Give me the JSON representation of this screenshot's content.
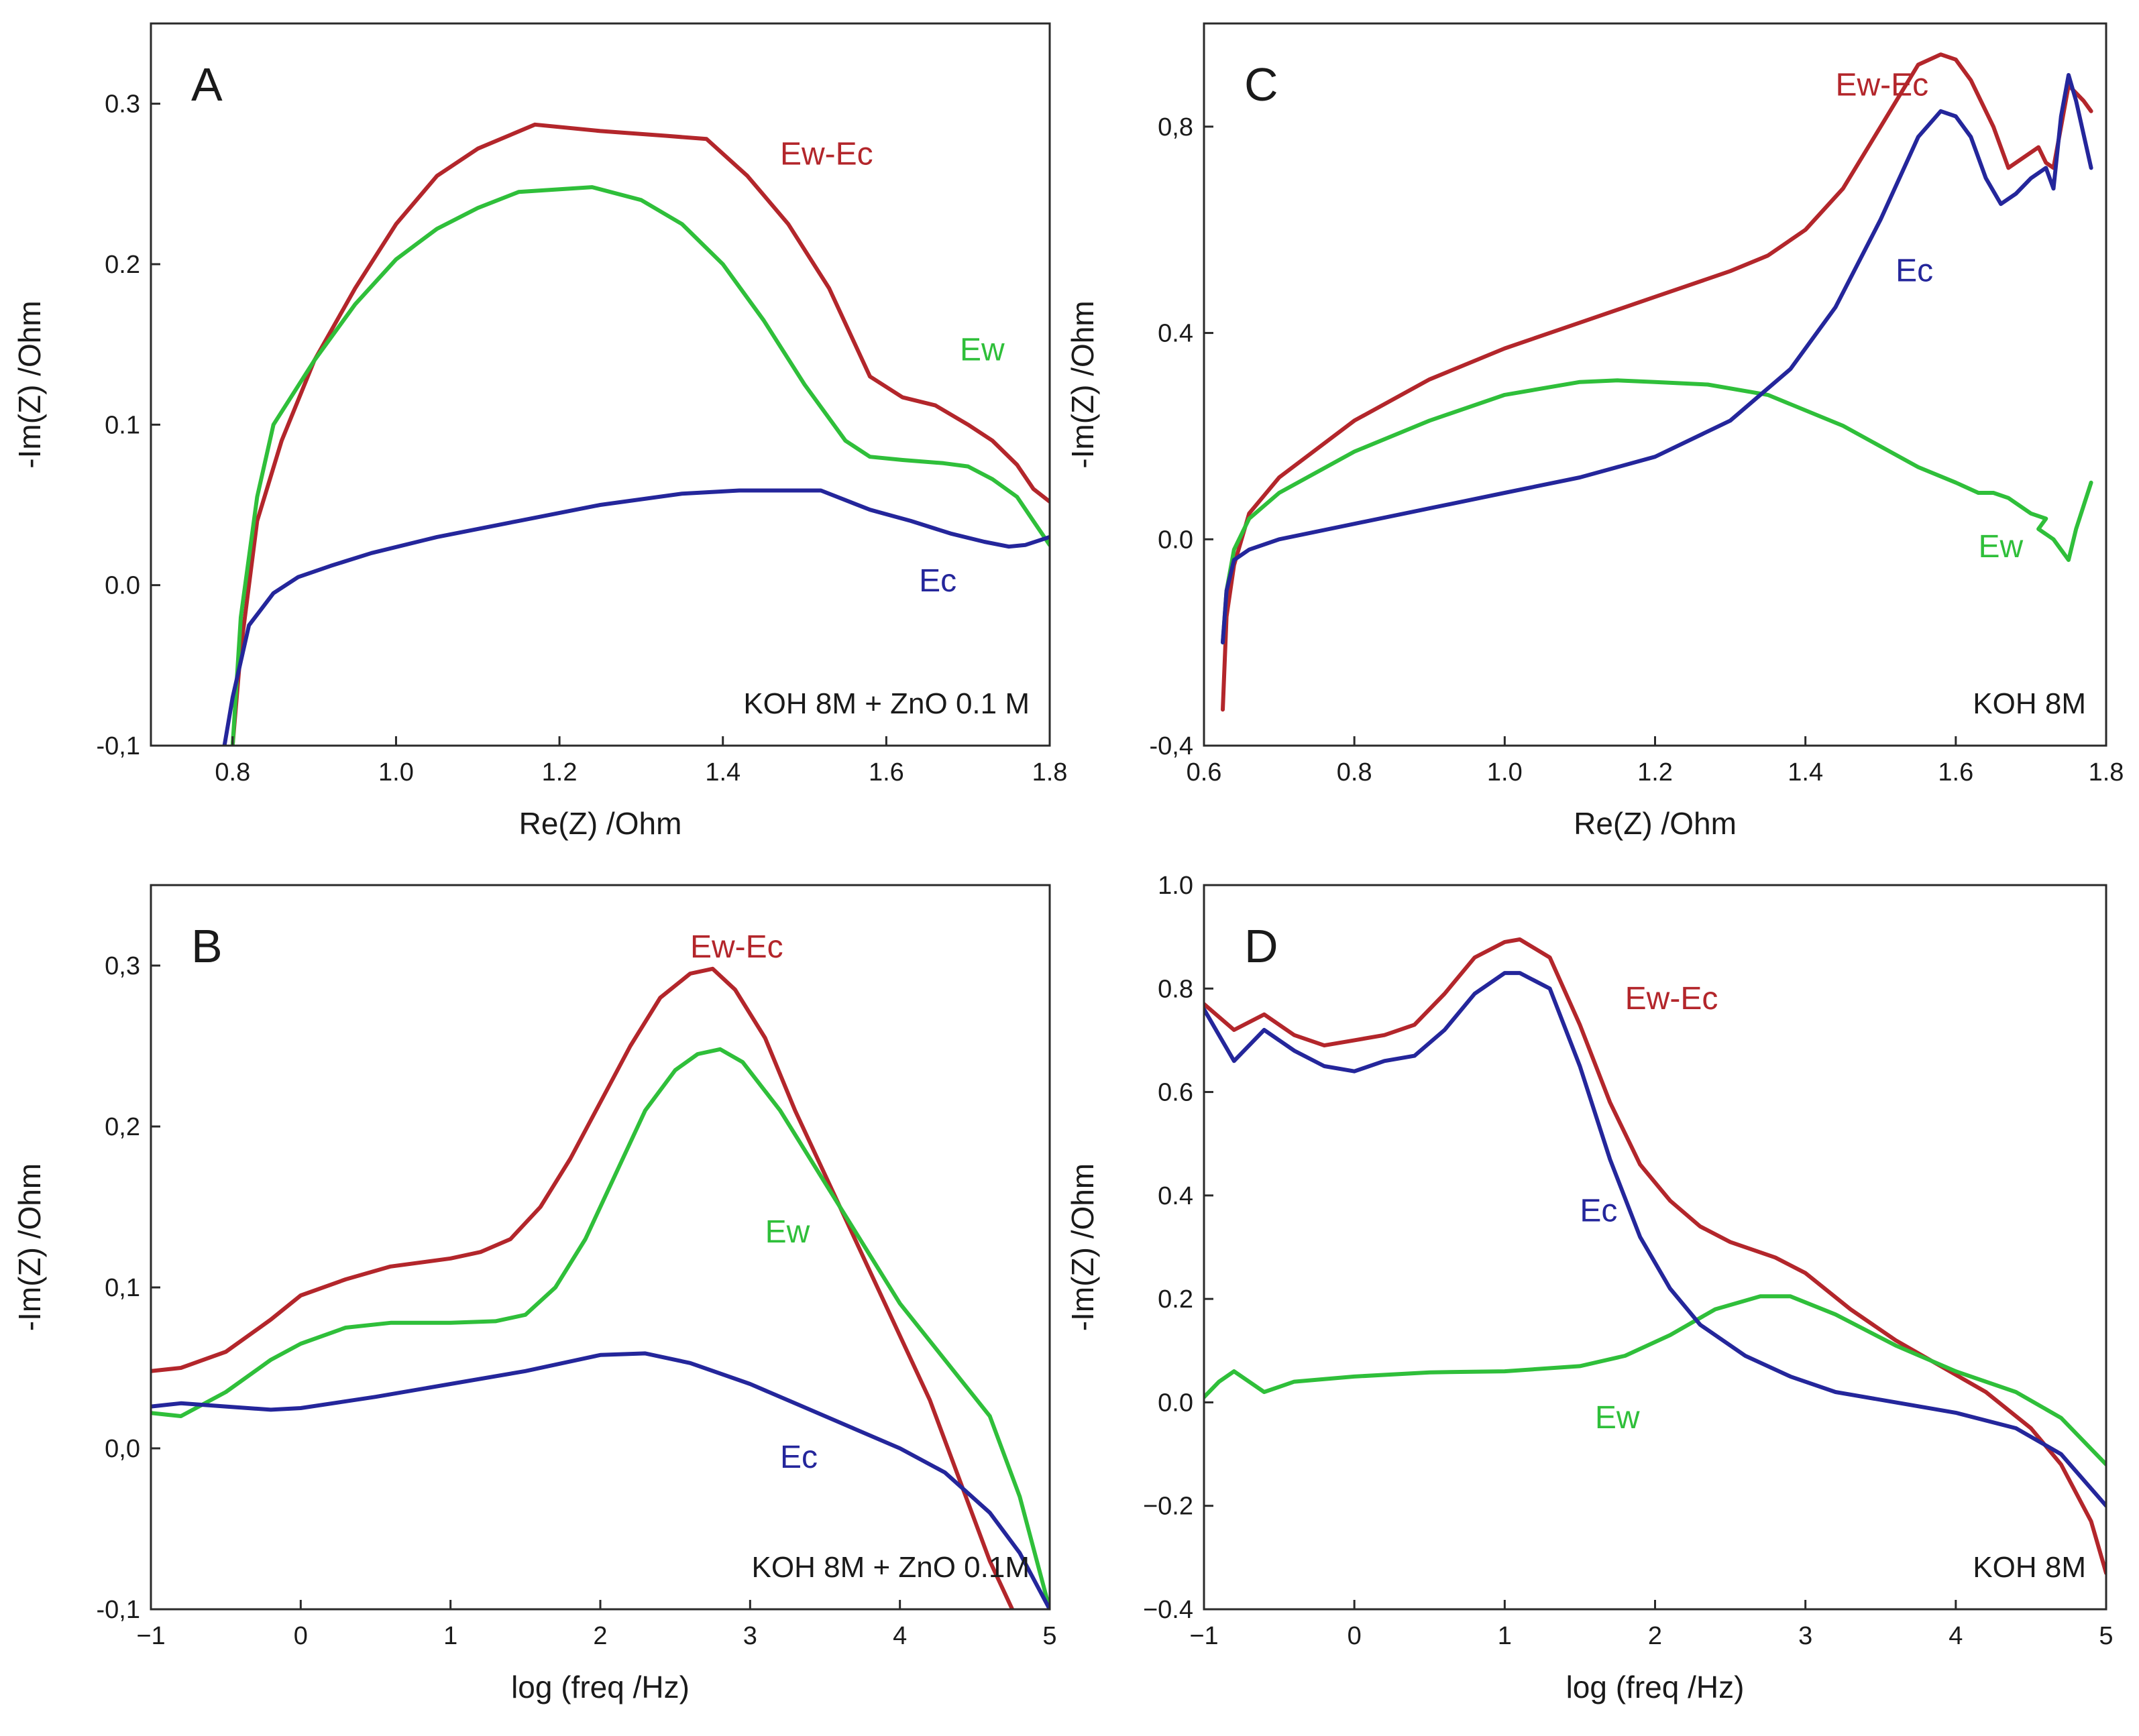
{
  "chart_data": [
    {
      "id": "A",
      "type": "line",
      "panel_label": "A",
      "xlabel": "Re(Z) /Ohm",
      "ylabel": "-Im(Z) /Ohm",
      "xlim": [
        0.7,
        1.8
      ],
      "ylim": [
        -0.1,
        0.35
      ],
      "xticks": [
        0.8,
        1.0,
        1.2,
        1.4,
        1.6,
        1.8
      ],
      "xtick_labels": [
        "0.8",
        "1.0",
        "1.2",
        "1.4",
        "1.6",
        "1.8"
      ],
      "yticks": [
        -0.1,
        0.0,
        0.1,
        0.2,
        0.3
      ],
      "ytick_labels": [
        "-0,1",
        "0.0",
        "0.1",
        "0.2",
        "0.3"
      ],
      "annotation": "KOH 8M + ZnO 0.1 M",
      "series": [
        {
          "name": "Ew-Ec",
          "color": "#b3262b",
          "x": [
            0.8,
            0.81,
            0.83,
            0.86,
            0.9,
            0.95,
            1.0,
            1.05,
            1.1,
            1.17,
            1.25,
            1.33,
            1.38,
            1.43,
            1.48,
            1.53,
            1.58,
            1.62,
            1.66,
            1.7,
            1.73,
            1.76,
            1.78,
            1.8
          ],
          "y": [
            -0.1,
            -0.04,
            0.04,
            0.09,
            0.14,
            0.185,
            0.225,
            0.255,
            0.272,
            0.287,
            0.283,
            0.28,
            0.278,
            0.255,
            0.225,
            0.185,
            0.13,
            0.117,
            0.112,
            0.1,
            0.09,
            0.075,
            0.06,
            0.052
          ],
          "label_pos": [
            1.47,
            0.262
          ]
        },
        {
          "name": "Ew",
          "color": "#2fbf3a",
          "x": [
            0.8,
            0.81,
            0.83,
            0.85,
            0.9,
            0.95,
            1.0,
            1.05,
            1.1,
            1.15,
            1.24,
            1.3,
            1.35,
            1.4,
            1.45,
            1.5,
            1.55,
            1.58,
            1.62,
            1.67,
            1.7,
            1.73,
            1.76,
            1.78,
            1.8
          ],
          "y": [
            -0.1,
            -0.02,
            0.055,
            0.1,
            0.14,
            0.175,
            0.203,
            0.222,
            0.235,
            0.245,
            0.248,
            0.24,
            0.225,
            0.2,
            0.165,
            0.125,
            0.09,
            0.08,
            0.078,
            0.076,
            0.074,
            0.066,
            0.055,
            0.04,
            0.025
          ],
          "label_pos": [
            1.69,
            0.14
          ]
        },
        {
          "name": "Ec",
          "color": "#24269b",
          "x": [
            0.79,
            0.8,
            0.82,
            0.85,
            0.88,
            0.92,
            0.97,
            1.05,
            1.15,
            1.25,
            1.35,
            1.42,
            1.52,
            1.58,
            1.63,
            1.68,
            1.72,
            1.75,
            1.77,
            1.8
          ],
          "y": [
            -0.1,
            -0.07,
            -0.025,
            -0.005,
            0.005,
            0.012,
            0.02,
            0.03,
            0.04,
            0.05,
            0.057,
            0.059,
            0.059,
            0.047,
            0.04,
            0.032,
            0.027,
            0.024,
            0.025,
            0.03
          ],
          "label_pos": [
            1.64,
            -0.004
          ]
        }
      ]
    },
    {
      "id": "B",
      "type": "line",
      "panel_label": "B",
      "xlabel": "log (freq /Hz)",
      "ylabel": "-Im(Z) /Ohm",
      "xlim": [
        -1,
        5
      ],
      "ylim": [
        -0.1,
        0.35
      ],
      "xticks": [
        -1,
        0,
        1,
        2,
        3,
        4,
        5
      ],
      "xtick_labels": [
        "−1",
        "0",
        "1",
        "2",
        "3",
        "4",
        "5"
      ],
      "yticks": [
        -0.1,
        0.0,
        0.1,
        0.2,
        0.3
      ],
      "ytick_labels": [
        "-0,1",
        "0,0",
        "0,1",
        "0,2",
        "0,3"
      ],
      "annotation": "KOH 8M + ZnO 0.1M",
      "series": [
        {
          "name": "Ew-Ec",
          "color": "#b3262b",
          "x": [
            -1.0,
            -0.8,
            -0.5,
            -0.2,
            0.0,
            0.3,
            0.6,
            1.0,
            1.2,
            1.4,
            1.6,
            1.8,
            2.0,
            2.2,
            2.4,
            2.6,
            2.75,
            2.9,
            3.1,
            3.3,
            3.6,
            3.9,
            4.2,
            4.4,
            4.6,
            4.8
          ],
          "y": [
            0.048,
            0.05,
            0.06,
            0.08,
            0.095,
            0.105,
            0.113,
            0.118,
            0.122,
            0.13,
            0.15,
            0.18,
            0.215,
            0.25,
            0.28,
            0.295,
            0.298,
            0.285,
            0.255,
            0.21,
            0.15,
            0.09,
            0.03,
            -0.02,
            -0.07,
            -0.11
          ],
          "label_pos": [
            2.6,
            0.305
          ]
        },
        {
          "name": "Ew",
          "color": "#2fbf3a",
          "x": [
            -1.0,
            -0.8,
            -0.5,
            -0.2,
            0.0,
            0.3,
            0.6,
            1.0,
            1.3,
            1.5,
            1.7,
            1.9,
            2.1,
            2.3,
            2.5,
            2.65,
            2.8,
            2.95,
            3.2,
            3.5,
            3.8,
            4.0,
            4.3,
            4.6,
            4.8,
            5.0
          ],
          "y": [
            0.022,
            0.02,
            0.035,
            0.055,
            0.065,
            0.075,
            0.078,
            0.078,
            0.079,
            0.083,
            0.1,
            0.13,
            0.17,
            0.21,
            0.235,
            0.245,
            0.248,
            0.24,
            0.21,
            0.165,
            0.12,
            0.09,
            0.055,
            0.02,
            -0.03,
            -0.1
          ],
          "label_pos": [
            3.1,
            0.128
          ]
        },
        {
          "name": "Ec",
          "color": "#24269b",
          "x": [
            -1.0,
            -0.8,
            -0.5,
            -0.2,
            0.0,
            0.5,
            1.0,
            1.5,
            2.0,
            2.3,
            2.6,
            3.0,
            3.3,
            3.7,
            4.0,
            4.3,
            4.6,
            4.8,
            5.0
          ],
          "y": [
            0.026,
            0.028,
            0.026,
            0.024,
            0.025,
            0.032,
            0.04,
            0.048,
            0.058,
            0.059,
            0.053,
            0.04,
            0.028,
            0.012,
            0.0,
            -0.015,
            -0.04,
            -0.065,
            -0.1
          ],
          "label_pos": [
            3.2,
            -0.012
          ]
        }
      ]
    },
    {
      "id": "C",
      "type": "line",
      "panel_label": "C",
      "xlabel": "Re(Z) /Ohm",
      "ylabel": "-Im(Z) /Ohm",
      "xlim": [
        0.6,
        1.8
      ],
      "ylim": [
        -0.4,
        1.0
      ],
      "xticks": [
        0.6,
        0.8,
        1.0,
        1.2,
        1.4,
        1.6,
        1.8
      ],
      "xtick_labels": [
        "0.6",
        "0.8",
        "1.0",
        "1.2",
        "1.4",
        "1.6",
        "1.8"
      ],
      "yticks": [
        -0.4,
        0.0,
        0.4,
        0.8
      ],
      "ytick_labels": [
        "-0,4",
        "0.0",
        "0.4",
        "0,8"
      ],
      "annotation": "KOH 8M",
      "series": [
        {
          "name": "Ew-Ec",
          "color": "#b3262b",
          "x": [
            0.625,
            0.63,
            0.64,
            0.66,
            0.7,
            0.8,
            0.9,
            1.0,
            1.1,
            1.2,
            1.3,
            1.35,
            1.4,
            1.45,
            1.5,
            1.55,
            1.58,
            1.6,
            1.62,
            1.65,
            1.67,
            1.69,
            1.71,
            1.72,
            1.73,
            1.74,
            1.75,
            1.77,
            1.78
          ],
          "y": [
            -0.33,
            -0.15,
            -0.05,
            0.05,
            0.12,
            0.23,
            0.31,
            0.37,
            0.42,
            0.47,
            0.52,
            0.55,
            0.6,
            0.68,
            0.8,
            0.92,
            0.94,
            0.93,
            0.89,
            0.8,
            0.72,
            0.74,
            0.76,
            0.73,
            0.72,
            0.8,
            0.88,
            0.85,
            0.83
          ],
          "label_pos": [
            1.44,
            0.86
          ]
        },
        {
          "name": "Ew",
          "color": "#2fbf3a",
          "x": [
            0.625,
            0.63,
            0.64,
            0.66,
            0.7,
            0.8,
            0.9,
            1.0,
            1.1,
            1.15,
            1.2,
            1.27,
            1.35,
            1.45,
            1.55,
            1.6,
            1.63,
            1.65,
            1.67,
            1.7,
            1.72,
            1.71,
            1.73,
            1.75,
            1.76,
            1.78
          ],
          "y": [
            -0.2,
            -0.1,
            -0.02,
            0.04,
            0.09,
            0.17,
            0.23,
            0.28,
            0.305,
            0.308,
            0.305,
            0.3,
            0.28,
            0.22,
            0.14,
            0.11,
            0.09,
            0.09,
            0.08,
            0.05,
            0.04,
            0.02,
            0.0,
            -0.04,
            0.02,
            0.11
          ],
          "label_pos": [
            1.63,
            -0.035
          ]
        },
        {
          "name": "Ec",
          "color": "#24269b",
          "x": [
            0.625,
            0.63,
            0.64,
            0.66,
            0.7,
            0.8,
            0.9,
            1.0,
            1.1,
            1.2,
            1.3,
            1.38,
            1.44,
            1.5,
            1.55,
            1.58,
            1.6,
            1.62,
            1.64,
            1.66,
            1.68,
            1.7,
            1.72,
            1.73,
            1.74,
            1.75,
            1.76,
            1.78
          ],
          "y": [
            -0.2,
            -0.1,
            -0.04,
            -0.02,
            0.0,
            0.03,
            0.06,
            0.09,
            0.12,
            0.16,
            0.23,
            0.33,
            0.45,
            0.62,
            0.78,
            0.83,
            0.82,
            0.78,
            0.7,
            0.65,
            0.67,
            0.7,
            0.72,
            0.68,
            0.82,
            0.9,
            0.85,
            0.72
          ],
          "label_pos": [
            1.52,
            0.5
          ]
        }
      ]
    },
    {
      "id": "D",
      "type": "line",
      "panel_label": "D",
      "xlabel": "log (freq /Hz)",
      "ylabel": "-Im(Z) /Ohm",
      "xlim": [
        -1,
        5
      ],
      "ylim": [
        -0.4,
        1.0
      ],
      "xticks": [
        -1,
        0,
        1,
        2,
        3,
        4,
        5
      ],
      "xtick_labels": [
        "−1",
        "0",
        "1",
        "2",
        "3",
        "4",
        "5"
      ],
      "yticks": [
        -0.4,
        -0.2,
        0.0,
        0.2,
        0.4,
        0.6,
        0.8,
        1.0
      ],
      "ytick_labels": [
        "−0.4",
        "−0.2",
        "0.0",
        "0.2",
        "0.4",
        "0.6",
        "0.8",
        "1.0"
      ],
      "annotation": "KOH 8M",
      "series": [
        {
          "name": "Ew-Ec",
          "color": "#b3262b",
          "x": [
            -1.0,
            -0.8,
            -0.6,
            -0.4,
            -0.2,
            0.0,
            0.2,
            0.4,
            0.6,
            0.8,
            1.0,
            1.1,
            1.3,
            1.5,
            1.7,
            1.9,
            2.1,
            2.3,
            2.5,
            2.8,
            3.0,
            3.3,
            3.6,
            3.9,
            4.2,
            4.5,
            4.7,
            4.9,
            5.0
          ],
          "y": [
            0.77,
            0.72,
            0.75,
            0.71,
            0.69,
            0.7,
            0.71,
            0.73,
            0.79,
            0.86,
            0.89,
            0.895,
            0.86,
            0.73,
            0.58,
            0.46,
            0.39,
            0.34,
            0.31,
            0.28,
            0.25,
            0.18,
            0.12,
            0.07,
            0.02,
            -0.05,
            -0.12,
            -0.23,
            -0.33
          ],
          "label_pos": [
            1.8,
            0.76
          ]
        },
        {
          "name": "Ew",
          "color": "#2fbf3a",
          "x": [
            -1.0,
            -0.9,
            -0.8,
            -0.6,
            -0.4,
            -0.2,
            0.0,
            0.5,
            1.0,
            1.5,
            1.8,
            2.1,
            2.4,
            2.7,
            2.9,
            3.2,
            3.6,
            4.0,
            4.4,
            4.7,
            5.0
          ],
          "y": [
            0.01,
            0.04,
            0.06,
            0.02,
            0.04,
            0.045,
            0.05,
            0.058,
            0.06,
            0.07,
            0.09,
            0.13,
            0.18,
            0.205,
            0.205,
            0.17,
            0.11,
            0.06,
            0.02,
            -0.03,
            -0.12
          ],
          "label_pos": [
            1.6,
            -0.05
          ]
        },
        {
          "name": "Ec",
          "color": "#24269b",
          "x": [
            -1.0,
            -0.9,
            -0.8,
            -0.6,
            -0.4,
            -0.2,
            0.0,
            0.2,
            0.4,
            0.6,
            0.8,
            1.0,
            1.1,
            1.3,
            1.5,
            1.7,
            1.9,
            2.1,
            2.3,
            2.6,
            2.9,
            3.2,
            3.6,
            4.0,
            4.4,
            4.7,
            5.0
          ],
          "y": [
            0.76,
            0.71,
            0.66,
            0.72,
            0.68,
            0.65,
            0.64,
            0.66,
            0.67,
            0.72,
            0.79,
            0.83,
            0.83,
            0.8,
            0.65,
            0.47,
            0.32,
            0.22,
            0.15,
            0.09,
            0.05,
            0.02,
            0.0,
            -0.02,
            -0.05,
            -0.1,
            -0.2
          ],
          "label_pos": [
            1.5,
            0.35
          ]
        }
      ]
    }
  ]
}
